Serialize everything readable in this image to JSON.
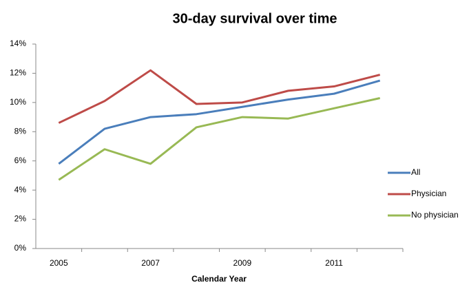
{
  "chart_data": {
    "type": "line",
    "title": "30-day survival over time",
    "x_label": "Calendar Year",
    "categories": [
      "2005",
      null,
      "2007",
      null,
      "2009",
      null,
      "2011",
      null
    ],
    "series": [
      {
        "name": "All",
        "color": "#4a7ebb",
        "values": [
          5.8,
          8.2,
          9.0,
          9.2,
          9.7,
          10.2,
          10.6,
          11.5
        ]
      },
      {
        "name": "Physician",
        "color": "#be4b48",
        "values": [
          8.6,
          10.1,
          12.2,
          9.9,
          10.0,
          10.8,
          11.1,
          11.9
        ]
      },
      {
        "name": "No physician",
        "color": "#98b954",
        "values": [
          4.7,
          6.8,
          5.8,
          8.3,
          9.0,
          8.9,
          9.6,
          10.3
        ]
      }
    ],
    "ylim": [
      0,
      14
    ],
    "yticks": [
      {
        "value": 0,
        "label": "0%"
      },
      {
        "value": 2,
        "label": "2%"
      },
      {
        "value": 4,
        "label": "4%"
      },
      {
        "value": 6,
        "label": "6%"
      },
      {
        "value": 8,
        "label": "8%"
      },
      {
        "value": 10,
        "label": "10%"
      },
      {
        "value": 12,
        "label": "12%"
      },
      {
        "value": 14,
        "label": "14%"
      }
    ],
    "grid": false,
    "legend": "right"
  }
}
